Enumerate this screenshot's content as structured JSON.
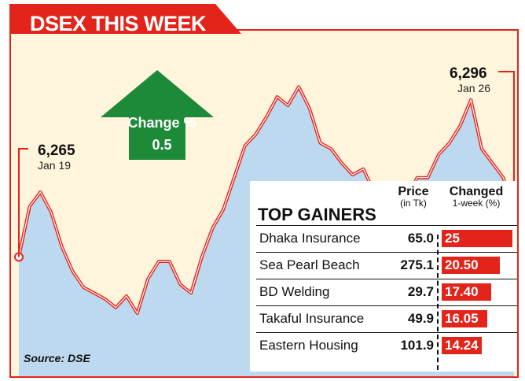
{
  "title": "DSEX THIS WEEK",
  "start": {
    "value": "6,265",
    "date": "Jan 19"
  },
  "end": {
    "value": "6,296",
    "date": "Jan 26"
  },
  "change": {
    "label": "Change %",
    "value": "0.5"
  },
  "gainers": {
    "title": "TOP GAINERS",
    "price_header": "Price",
    "price_sub": "(in Tk)",
    "change_header": "Changed",
    "change_sub": "1-week (%)",
    "rows": [
      {
        "name": "Dhaka Insurance",
        "price": "65.0",
        "change": "25"
      },
      {
        "name": "Sea Pearl Beach",
        "price": "275.1",
        "change": "20.50"
      },
      {
        "name": "BD Welding",
        "price": "29.7",
        "change": "17.40"
      },
      {
        "name": "Takaful Insurance",
        "price": "49.9",
        "change": "16.05"
      },
      {
        "name": "Eastern Housing",
        "price": "101.9",
        "change": "14.24"
      }
    ]
  },
  "source": "Source: DSE",
  "colors": {
    "accent": "#e3241b",
    "area": "#bcd9ef",
    "background": "#fff4dc",
    "arrow": "#1d8a3a"
  },
  "chart_data": [
    {
      "type": "line",
      "title": "DSEX THIS WEEK",
      "x_start": "Jan 19",
      "x_end": "Jan 26",
      "points": [
        6265,
        6300,
        6310,
        6296,
        6272,
        6255,
        6244,
        6240,
        6236,
        6230,
        6238,
        6226,
        6250,
        6262,
        6262,
        6246,
        6240,
        6265,
        6285,
        6298,
        6320,
        6342,
        6350,
        6362,
        6376,
        6370,
        6383,
        6368,
        6344,
        6340,
        6330,
        6322,
        6326,
        6310,
        6300,
        6314,
        6304,
        6320,
        6320,
        6336,
        6344,
        6356,
        6374,
        6340,
        6330,
        6320,
        6296
      ],
      "ylim": [
        6220,
        6400
      ]
    },
    {
      "type": "bar",
      "title": "TOP GAINERS",
      "categories": [
        "Dhaka Insurance",
        "Sea Pearl Beach",
        "BD Welding",
        "Takaful Insurance",
        "Eastern Housing"
      ],
      "series": [
        {
          "name": "Price",
          "values": [
            65.0,
            275.1,
            29.7,
            49.9,
            101.9
          ]
        },
        {
          "name": "Changed",
          "values": [
            25,
            20.5,
            17.4,
            16.05,
            14.24
          ]
        }
      ]
    }
  ]
}
